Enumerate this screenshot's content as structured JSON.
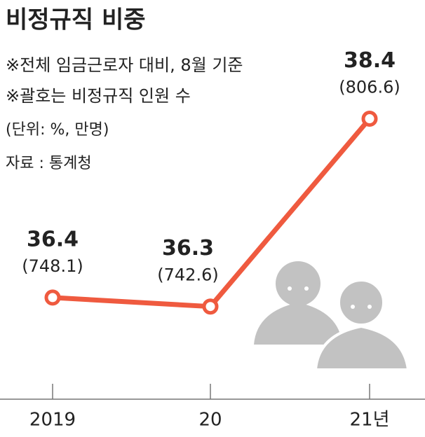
{
  "chart_data": {
    "type": "line",
    "title": "비정규직 비중",
    "notes": [
      "※전체 임금근로자 대비, 8월 기준",
      "※괄호는 비정규직 인원 수",
      "(단위: %, 만명)",
      "자료 : 통계청"
    ],
    "categories": [
      "2019",
      "20",
      "21년"
    ],
    "values": [
      36.4,
      36.3,
      38.4
    ],
    "count_labels": [
      "(748.1)",
      "(742.6)",
      "(806.6)"
    ],
    "color": "#ef5a3f",
    "ylim": [
      36,
      38.6
    ]
  }
}
